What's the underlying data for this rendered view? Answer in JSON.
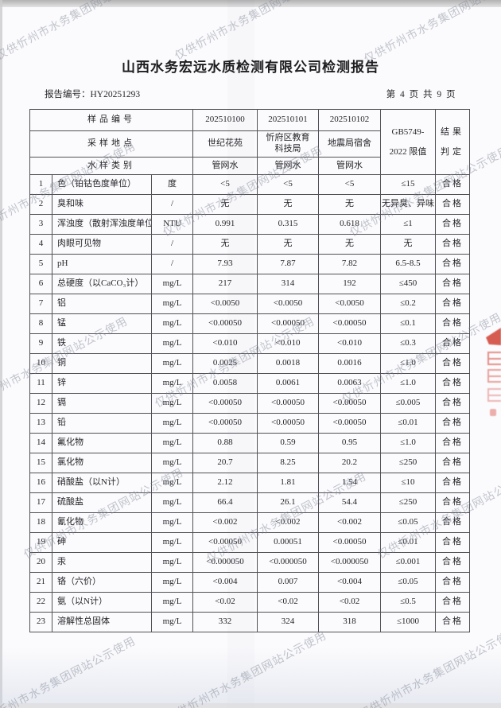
{
  "page": {
    "title": "山西水务宏远水质检测有限公司检测报告",
    "report_no_label": "报告编号：",
    "report_no": "HY20251293",
    "page_indicator": "第 4 页 共 9 页"
  },
  "watermark": {
    "text": "仅供忻州市水务集团网站公示使用"
  },
  "colors": {
    "seal_red": "#cf4034",
    "watermark_gray": "#7d8392",
    "border_gray": "#515156"
  },
  "table": {
    "header": {
      "sample_no_label": "样品编号",
      "location_label": "采样地点",
      "type_label": "水样类别",
      "limit_line1": "GB5749-",
      "limit_line2": "2022 限值",
      "verdict_line1": "结果",
      "verdict_line2": "判定",
      "samples": [
        {
          "no": "202510100",
          "location": "世纪花苑",
          "type": "管网水"
        },
        {
          "no": "202510101",
          "location": "忻府区教育科技局",
          "type": "管网水"
        },
        {
          "no": "202510102",
          "location": "地震局宿舍",
          "type": "管网水"
        }
      ]
    },
    "rows": [
      {
        "no": 1,
        "name": "色（铂钴色度单位）",
        "unit": "度",
        "v1": "<5",
        "v2": "<5",
        "v3": "<5",
        "limit": "≤15",
        "verdict": "合格"
      },
      {
        "no": 2,
        "name": "臭和味",
        "unit": "/",
        "v1": "无",
        "v2": "无",
        "v3": "无",
        "limit": "无异臭、异味",
        "verdict": "合格"
      },
      {
        "no": 3,
        "name": "浑浊度（散射浑浊度单位）",
        "unit": "NTU",
        "v1": "0.991",
        "v2": "0.315",
        "v3": "0.618",
        "limit": "≤1",
        "verdict": "合格"
      },
      {
        "no": 4,
        "name": "肉眼可见物",
        "unit": "/",
        "v1": "无",
        "v2": "无",
        "v3": "无",
        "limit": "无",
        "verdict": "合格"
      },
      {
        "no": 5,
        "name": "pH",
        "unit": "/",
        "v1": "7.93",
        "v2": "7.87",
        "v3": "7.82",
        "limit": "6.5-8.5",
        "verdict": "合格"
      },
      {
        "no": 6,
        "name": "总硬度（以CaCO₃计）",
        "unit": "mg/L",
        "v1": "217",
        "v2": "314",
        "v3": "192",
        "limit": "≤450",
        "verdict": "合格"
      },
      {
        "no": 7,
        "name": "铝",
        "unit": "mg/L",
        "v1": "<0.0050",
        "v2": "<0.0050",
        "v3": "<0.0050",
        "limit": "≤0.2",
        "verdict": "合格"
      },
      {
        "no": 8,
        "name": "锰",
        "unit": "mg/L",
        "v1": "<0.00050",
        "v2": "<0.00050",
        "v3": "<0.00050",
        "limit": "≤0.1",
        "verdict": "合格"
      },
      {
        "no": 9,
        "name": "铁",
        "unit": "mg/L",
        "v1": "<0.010",
        "v2": "<0.010",
        "v3": "<0.010",
        "limit": "≤0.3",
        "verdict": "合格"
      },
      {
        "no": 10,
        "name": "铜",
        "unit": "mg/L",
        "v1": "0.0025",
        "v2": "0.0018",
        "v3": "0.0016",
        "limit": "≤1.0",
        "verdict": "合格"
      },
      {
        "no": 11,
        "name": "锌",
        "unit": "mg/L",
        "v1": "0.0058",
        "v2": "0.0061",
        "v3": "0.0063",
        "limit": "≤1.0",
        "verdict": "合格"
      },
      {
        "no": 12,
        "name": "镉",
        "unit": "mg/L",
        "v1": "<0.00050",
        "v2": "<0.00050",
        "v3": "<0.00050",
        "limit": "≤0.005",
        "verdict": "合格"
      },
      {
        "no": 13,
        "name": "铅",
        "unit": "mg/L",
        "v1": "<0.00050",
        "v2": "<0.00050",
        "v3": "<0.00050",
        "limit": "≤0.01",
        "verdict": "合格"
      },
      {
        "no": 14,
        "name": "氟化物",
        "unit": "mg/L",
        "v1": "0.88",
        "v2": "0.59",
        "v3": "0.95",
        "limit": "≤1.0",
        "verdict": "合格"
      },
      {
        "no": 15,
        "name": "氯化物",
        "unit": "mg/L",
        "v1": "20.7",
        "v2": "8.25",
        "v3": "20.2",
        "limit": "≤250",
        "verdict": "合格"
      },
      {
        "no": 16,
        "name": "硝酸盐（以N计）",
        "unit": "mg/L",
        "v1": "2.12",
        "v2": "1.81",
        "v3": "1.54",
        "limit": "≤10",
        "verdict": "合格"
      },
      {
        "no": 17,
        "name": "硫酸盐",
        "unit": "mg/L",
        "v1": "66.4",
        "v2": "26.1",
        "v3": "54.4",
        "limit": "≤250",
        "verdict": "合格"
      },
      {
        "no": 18,
        "name": "氰化物",
        "unit": "mg/L",
        "v1": "<0.002",
        "v2": "<0.002",
        "v3": "<0.002",
        "limit": "≤0.05",
        "verdict": "合格"
      },
      {
        "no": 19,
        "name": "砷",
        "unit": "mg/L",
        "v1": "<0.00050",
        "v2": "0.00051",
        "v3": "<0.00050",
        "limit": "≤0.01",
        "verdict": "合格"
      },
      {
        "no": 20,
        "name": "汞",
        "unit": "mg/L",
        "v1": "<0.000050",
        "v2": "<0.000050",
        "v3": "<0.000050",
        "limit": "≤0.001",
        "verdict": "合格"
      },
      {
        "no": 21,
        "name": "铬（六价）",
        "unit": "mg/L",
        "v1": "<0.004",
        "v2": "0.007",
        "v3": "<0.004",
        "limit": "≤0.05",
        "verdict": "合格"
      },
      {
        "no": 22,
        "name": "氨（以N计）",
        "unit": "mg/L",
        "v1": "<0.02",
        "v2": "<0.02",
        "v3": "<0.02",
        "limit": "≤0.5",
        "verdict": "合格"
      },
      {
        "no": 23,
        "name": "溶解性总固体",
        "unit": "mg/L",
        "v1": "332",
        "v2": "324",
        "v3": "318",
        "limit": "≤1000",
        "verdict": "合格"
      }
    ]
  }
}
